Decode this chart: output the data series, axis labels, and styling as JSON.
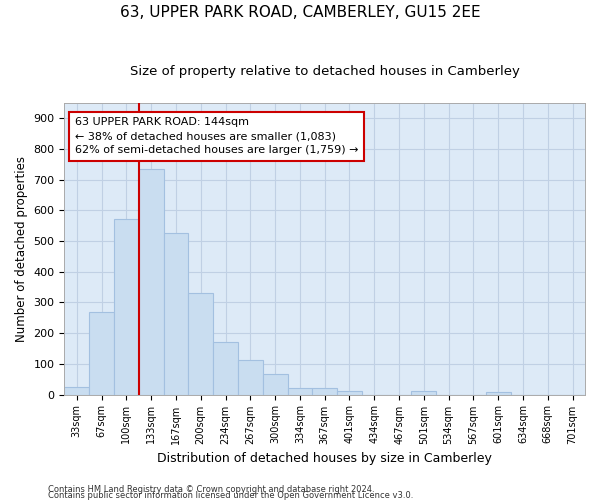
{
  "title": "63, UPPER PARK ROAD, CAMBERLEY, GU15 2EE",
  "subtitle": "Size of property relative to detached houses in Camberley",
  "xlabel": "Distribution of detached houses by size in Camberley",
  "ylabel": "Number of detached properties",
  "categories": [
    "33sqm",
    "67sqm",
    "100sqm",
    "133sqm",
    "167sqm",
    "200sqm",
    "234sqm",
    "267sqm",
    "300sqm",
    "334sqm",
    "367sqm",
    "401sqm",
    "434sqm",
    "467sqm",
    "501sqm",
    "534sqm",
    "567sqm",
    "601sqm",
    "634sqm",
    "668sqm",
    "701sqm"
  ],
  "values": [
    25,
    270,
    572,
    735,
    525,
    330,
    170,
    113,
    68,
    22,
    20,
    13,
    0,
    0,
    10,
    0,
    0,
    8,
    0,
    0,
    0
  ],
  "bar_color": "#c9ddf0",
  "bar_edge_color": "#a3c0e0",
  "vline_color": "#cc0000",
  "vline_pos": 3,
  "annotation_line1": "63 UPPER PARK ROAD: 144sqm",
  "annotation_line2": "← 38% of detached houses are smaller (1,083)",
  "annotation_line3": "62% of semi-detached houses are larger (1,759) →",
  "annotation_box_color": "#ffffff",
  "annotation_box_edge": "#cc0000",
  "ylim_max": 950,
  "yticks": [
    0,
    100,
    200,
    300,
    400,
    500,
    600,
    700,
    800,
    900
  ],
  "grid_color": "#c0d0e4",
  "bg_color": "#ddeaf7",
  "title_fontsize": 11,
  "subtitle_fontsize": 9.5,
  "footer1": "Contains HM Land Registry data © Crown copyright and database right 2024.",
  "footer2": "Contains public sector information licensed under the Open Government Licence v3.0."
}
